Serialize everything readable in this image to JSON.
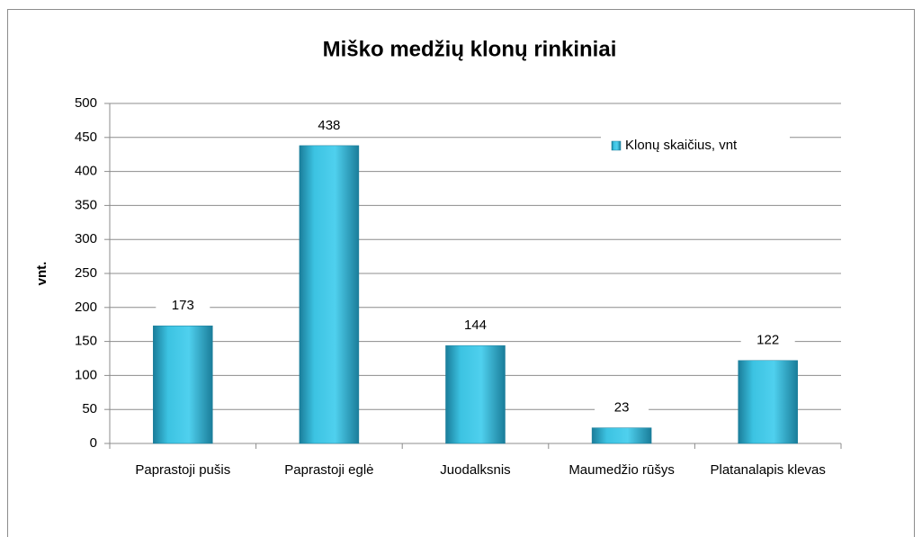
{
  "chart_data": {
    "type": "bar",
    "title": "Miško medžių klonų rinkiniai",
    "ylabel": "vnt.",
    "categories": [
      "Paprastoji pušis",
      "Paprastoji eglė",
      "Juodalksnis",
      "Maumedžio rūšys",
      "Platanalapis klevas"
    ],
    "series": [
      {
        "name": "Klonų skaičius, vnt",
        "color": "#31b0d5",
        "values": [
          173,
          438,
          144,
          23,
          122
        ]
      }
    ],
    "ylim": [
      0,
      500
    ],
    "yticks": [
      0,
      50,
      100,
      150,
      200,
      250,
      300,
      350,
      400,
      450,
      500
    ],
    "grid": true,
    "legend": "top-right"
  }
}
